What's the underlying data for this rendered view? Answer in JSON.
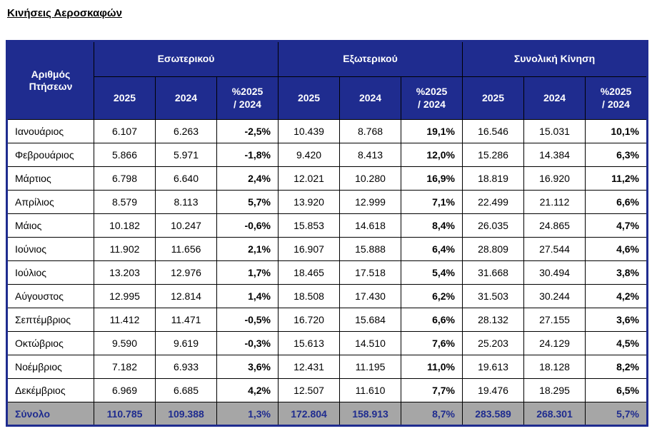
{
  "page_title": "Κινήσεις Αεροσκαφών",
  "colors": {
    "header_bg": "#1F2C8F",
    "header_text": "#FFFFFF",
    "total_bg": "#A6A6A6",
    "total_text": "#1F2C8F",
    "cell_border": "#000000",
    "body_bg": "#FFFFFF"
  },
  "chart_data": {
    "type": "table",
    "title": "Κινήσεις Αεροσκαφών",
    "corner_header": "Αριθμός Πτήσεων",
    "groups": [
      "Εσωτερικού",
      "Εξωτερικού",
      "Συνολική Κίνηση"
    ],
    "sub_headers": [
      "2025",
      "2024",
      "%2025\n/ 2024"
    ],
    "rows": [
      {
        "label": "Ιανουάριος",
        "values": [
          "6.107",
          "6.263",
          "-2,5%",
          "10.439",
          "8.768",
          "19,1%",
          "16.546",
          "15.031",
          "10,1%"
        ]
      },
      {
        "label": "Φεβρουάριος",
        "values": [
          "5.866",
          "5.971",
          "-1,8%",
          "9.420",
          "8.413",
          "12,0%",
          "15.286",
          "14.384",
          "6,3%"
        ]
      },
      {
        "label": "Μάρτιος",
        "values": [
          "6.798",
          "6.640",
          "2,4%",
          "12.021",
          "10.280",
          "16,9%",
          "18.819",
          "16.920",
          "11,2%"
        ]
      },
      {
        "label": "Απρίλιος",
        "values": [
          "8.579",
          "8.113",
          "5,7%",
          "13.920",
          "12.999",
          "7,1%",
          "22.499",
          "21.112",
          "6,6%"
        ]
      },
      {
        "label": "Μάιος",
        "values": [
          "10.182",
          "10.247",
          "-0,6%",
          "15.853",
          "14.618",
          "8,4%",
          "26.035",
          "24.865",
          "4,7%"
        ]
      },
      {
        "label": "Ιούνιος",
        "values": [
          "11.902",
          "11.656",
          "2,1%",
          "16.907",
          "15.888",
          "6,4%",
          "28.809",
          "27.544",
          "4,6%"
        ]
      },
      {
        "label": "Ιούλιος",
        "values": [
          "13.203",
          "12.976",
          "1,7%",
          "18.465",
          "17.518",
          "5,4%",
          "31.668",
          "30.494",
          "3,8%"
        ]
      },
      {
        "label": "Αύγουστος",
        "values": [
          "12.995",
          "12.814",
          "1,4%",
          "18.508",
          "17.430",
          "6,2%",
          "31.503",
          "30.244",
          "4,2%"
        ]
      },
      {
        "label": "Σεπτέμβριος",
        "values": [
          "11.412",
          "11.471",
          "-0,5%",
          "16.720",
          "15.684",
          "6,6%",
          "28.132",
          "27.155",
          "3,6%"
        ]
      },
      {
        "label": "Οκτώβριος",
        "values": [
          "9.590",
          "9.619",
          "-0,3%",
          "15.613",
          "14.510",
          "7,6%",
          "25.203",
          "24.129",
          "4,5%"
        ]
      },
      {
        "label": "Νοέμβριος",
        "values": [
          "7.182",
          "6.933",
          "3,6%",
          "12.431",
          "11.195",
          "11,0%",
          "19.613",
          "18.128",
          "8,2%"
        ]
      },
      {
        "label": "Δεκέμβριος",
        "values": [
          "6.969",
          "6.685",
          "4,2%",
          "12.507",
          "11.610",
          "7,7%",
          "19.476",
          "18.295",
          "6,5%"
        ]
      }
    ],
    "total_row": {
      "label": "Σύνολο",
      "values": [
        "110.785",
        "109.388",
        "1,3%",
        "172.804",
        "158.913",
        "8,7%",
        "283.589",
        "268.301",
        "5,7%"
      ]
    }
  }
}
